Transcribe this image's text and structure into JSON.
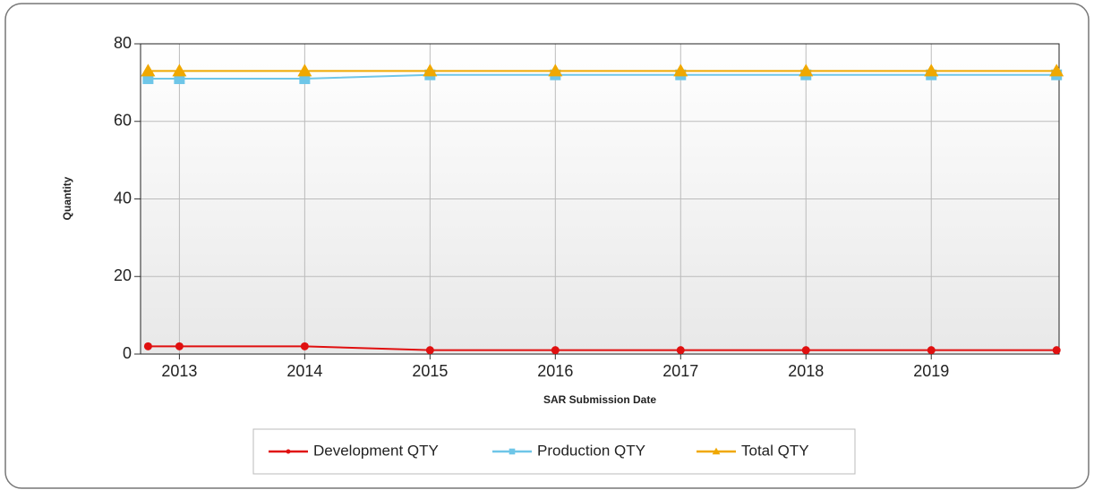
{
  "chart_data": {
    "type": "line",
    "x_label": "SAR Submission Date",
    "y_label": "Quantity",
    "x": [
      2012.75,
      2013,
      2014,
      2015,
      2016,
      2017,
      2018,
      2019,
      2020
    ],
    "series": [
      {
        "name": "Development QTY",
        "color": "#e01010",
        "marker": "circle",
        "values": [
          2,
          2,
          2,
          1,
          1,
          1,
          1,
          1,
          1
        ]
      },
      {
        "name": "Production QTY",
        "color": "#6ec6e8",
        "marker": "square",
        "values": [
          71,
          71,
          71,
          72,
          72,
          72,
          72,
          72,
          72
        ]
      },
      {
        "name": "Total QTY",
        "color": "#f0a800",
        "marker": "triangle",
        "values": [
          73,
          73,
          73,
          73,
          73,
          73,
          73,
          73,
          73
        ]
      }
    ],
    "xlim": [
      2012.69,
      2020.02
    ],
    "xticks": [
      2013,
      2014,
      2015,
      2016,
      2017,
      2018,
      2019
    ],
    "ylim": [
      0,
      80
    ],
    "yticks": [
      0,
      20,
      40,
      60,
      80
    ],
    "grid": true,
    "legend": "bottom"
  }
}
